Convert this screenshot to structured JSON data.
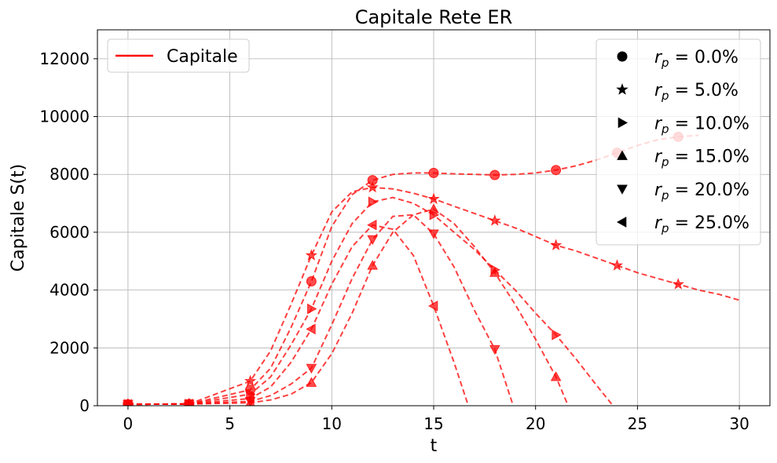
{
  "chart_data": {
    "type": "line",
    "title": "Capitale Rete ER",
    "xlabel": "t",
    "ylabel": "Capitale S(t)",
    "xlim": [
      -1.5,
      31.5
    ],
    "ylim": [
      0,
      13000
    ],
    "xticks": [
      0,
      5,
      10,
      15,
      20,
      25,
      30
    ],
    "yticks": [
      0,
      2000,
      4000,
      6000,
      8000,
      10000,
      12000
    ],
    "grid": true,
    "line_color": "#ff0000",
    "legend_line": {
      "label": "Capitale",
      "placement": "upper left"
    },
    "legend_markers": {
      "placement": "upper right",
      "prefix": "r",
      "subscript": "p",
      "equals": " = "
    },
    "series": [
      {
        "name": "0.0%",
        "marker": "circle",
        "x": [
          0,
          3,
          6,
          7,
          8,
          9,
          10,
          11,
          12,
          13,
          14,
          15,
          16,
          17,
          18,
          19,
          20,
          21,
          22,
          23,
          24,
          25,
          26,
          27,
          28
        ],
        "y": [
          50,
          60,
          550,
          1300,
          2700,
          4300,
          6200,
          7300,
          7800,
          8000,
          8050,
          8050,
          8020,
          8000,
          7980,
          8000,
          8050,
          8150,
          8300,
          8500,
          8750,
          9000,
          9200,
          9300,
          9350
        ],
        "markers_x": [
          0,
          3,
          6,
          9,
          12,
          15,
          18,
          21,
          24,
          27
        ],
        "markers_y": [
          50,
          60,
          550,
          4300,
          7800,
          8050,
          7980,
          8150,
          8750,
          9300
        ]
      },
      {
        "name": "5.0%",
        "marker": "star",
        "x": [
          0,
          3,
          6,
          7,
          8,
          9,
          10,
          11,
          12,
          13,
          14,
          15,
          16,
          17,
          18,
          19,
          20,
          21,
          22,
          23,
          24,
          25,
          26,
          27,
          28,
          29,
          30
        ],
        "y": [
          50,
          60,
          850,
          1900,
          3500,
          5200,
          6700,
          7400,
          7550,
          7500,
          7350,
          7150,
          6900,
          6650,
          6400,
          6150,
          5850,
          5550,
          5350,
          5100,
          4850,
          4600,
          4400,
          4200,
          4000,
          3850,
          3650
        ],
        "markers_x": [
          0,
          3,
          6,
          9,
          12,
          15,
          18,
          21,
          24,
          27
        ],
        "markers_y": [
          50,
          60,
          850,
          5200,
          7550,
          7150,
          6400,
          5550,
          4850,
          4200
        ]
      },
      {
        "name": "10.0%",
        "marker": "triangle-right",
        "x": [
          0,
          3,
          6,
          7,
          8,
          9,
          10,
          11,
          12,
          13,
          14,
          15,
          16,
          17,
          18,
          19,
          20,
          21,
          22,
          23,
          23.8
        ],
        "y": [
          50,
          60,
          400,
          1000,
          2100,
          3350,
          5000,
          6300,
          7050,
          7200,
          7000,
          6600,
          6000,
          5400,
          4700,
          4000,
          3200,
          2450,
          1600,
          700,
          0
        ],
        "markers_x": [
          0,
          3,
          6,
          9,
          12,
          15,
          18,
          21
        ],
        "markers_y": [
          50,
          60,
          400,
          3350,
          7050,
          6600,
          4700,
          2450
        ]
      },
      {
        "name": "15.0%",
        "marker": "triangle-up",
        "x": [
          0,
          3,
          6,
          7,
          8,
          9,
          10,
          11,
          12,
          13,
          14,
          15,
          16,
          17,
          18,
          19,
          20,
          21,
          21.6
        ],
        "y": [
          50,
          60,
          100,
          200,
          400,
          800,
          1800,
          3200,
          4850,
          6000,
          6600,
          6800,
          6300,
          5500,
          4600,
          3500,
          2300,
          1000,
          0
        ],
        "markers_x": [
          0,
          3,
          6,
          9,
          12,
          15,
          18,
          21
        ],
        "markers_y": [
          50,
          60,
          100,
          800,
          4850,
          6800,
          4600,
          1000
        ]
      },
      {
        "name": "20.0%",
        "marker": "triangle-down",
        "x": [
          0,
          3,
          6,
          7,
          8,
          9,
          10,
          11,
          12,
          13,
          14,
          15,
          16,
          17,
          18,
          18.9
        ],
        "y": [
          50,
          60,
          150,
          350,
          750,
          1300,
          2800,
          4400,
          5750,
          6550,
          6600,
          5950,
          4800,
          3300,
          1950,
          0
        ],
        "markers_x": [
          0,
          3,
          6,
          9,
          12,
          15,
          18
        ],
        "markers_y": [
          50,
          60,
          150,
          1300,
          5750,
          5950,
          1950
        ]
      },
      {
        "name": "25.0%",
        "marker": "triangle-left",
        "x": [
          0,
          3,
          6,
          7,
          8,
          9,
          10,
          11,
          12,
          13,
          14,
          15,
          16,
          16.7
        ],
        "y": [
          50,
          60,
          250,
          650,
          1500,
          2650,
          4200,
          5500,
          6250,
          6100,
          5200,
          3450,
          1500,
          0
        ],
        "markers_x": [
          0,
          3,
          6,
          9,
          12,
          15
        ],
        "markers_y": [
          50,
          60,
          250,
          2650,
          6250,
          3450
        ]
      }
    ]
  }
}
